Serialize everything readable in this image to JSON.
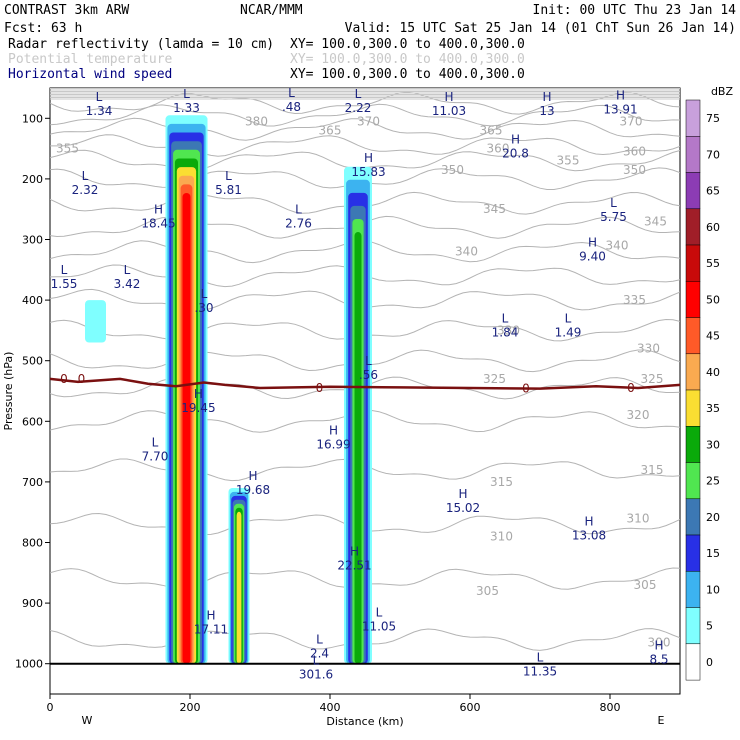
{
  "header": {
    "left_title": "CONTRAST  3km ARW",
    "center_title": "NCAR/MMM",
    "init": "Init: 00 UTC Thu 23 Jan 14",
    "fcst": "Fcst:   63 h",
    "valid": "Valid: 15 UTC Sat 25 Jan 14 (01 ChT Sun 26 Jan 14)",
    "fields": [
      {
        "name": "Radar reflectivity (lamda = 10 cm)",
        "xy": "XY= 100.0,300.0 to 400.0,300.0",
        "color": "#000000"
      },
      {
        "name": "Potential temperature",
        "xy": "XY= 100.0,300.0 to 400.0,300.0",
        "color": "#c8c8c8"
      },
      {
        "name": "Horizontal wind speed",
        "xy": "XY= 100.0,300.0 to 400.0,300.0",
        "color": "#000080"
      }
    ]
  },
  "chart_data": {
    "type": "heatmap",
    "xlabel": "Distance (km)",
    "ylabel": "Pressure (hPa)",
    "xlim": [
      0,
      900
    ],
    "ylim": [
      1050,
      50
    ],
    "x_ticks": [
      0,
      200,
      400,
      600,
      800
    ],
    "y_ticks": [
      100,
      200,
      300,
      400,
      500,
      600,
      700,
      800,
      900,
      1000
    ],
    "x_end_labels": {
      "left": "W",
      "right": "E"
    },
    "colorbar": {
      "unit": "dBZ",
      "levels": [
        0,
        5,
        10,
        15,
        20,
        25,
        30,
        35,
        40,
        45,
        50,
        55,
        60,
        65,
        70,
        75
      ],
      "colors": [
        "#ffffff",
        "#7fffff",
        "#3cb3f0",
        "#2830e6",
        "#3c78b4",
        "#50e650",
        "#0aaa0a",
        "#fade32",
        "#faaa50",
        "#ff5a28",
        "#ff0000",
        "#c80a0a",
        "#a01e28",
        "#8c3cb4",
        "#b478c8",
        "#c8a0dc"
      ]
    },
    "reflectivity_cells": [
      {
        "x0": 165,
        "x1": 225,
        "p_top": 95,
        "p_bottom": 1000,
        "max_dbz": 50
      },
      {
        "x0": 255,
        "x1": 285,
        "p_top": 710,
        "p_bottom": 1000,
        "max_dbz": 35
      },
      {
        "x0": 420,
        "x1": 460,
        "p_top": 180,
        "p_bottom": 1000,
        "max_dbz": 30
      },
      {
        "x0": 50,
        "x1": 80,
        "p_top": 400,
        "p_bottom": 470,
        "max_dbz": 5
      }
    ],
    "isentrope_labels": [
      {
        "x": 295,
        "p": 105,
        "text": "380"
      },
      {
        "x": 455,
        "p": 105,
        "text": "370"
      },
      {
        "x": 830,
        "p": 105,
        "text": "370"
      },
      {
        "x": 400,
        "p": 120,
        "text": "365"
      },
      {
        "x": 630,
        "p": 120,
        "text": "365"
      },
      {
        "x": 25,
        "p": 150,
        "text": "355"
      },
      {
        "x": 640,
        "p": 150,
        "text": "360"
      },
      {
        "x": 740,
        "p": 170,
        "text": "355"
      },
      {
        "x": 835,
        "p": 155,
        "text": "360"
      },
      {
        "x": 575,
        "p": 185,
        "text": "350"
      },
      {
        "x": 835,
        "p": 185,
        "text": "350"
      },
      {
        "x": 635,
        "p": 250,
        "text": "345"
      },
      {
        "x": 865,
        "p": 270,
        "text": "345"
      },
      {
        "x": 595,
        "p": 320,
        "text": "340"
      },
      {
        "x": 810,
        "p": 310,
        "text": "340"
      },
      {
        "x": 835,
        "p": 400,
        "text": "335"
      },
      {
        "x": 655,
        "p": 450,
        "text": "330"
      },
      {
        "x": 855,
        "p": 480,
        "text": "330"
      },
      {
        "x": 635,
        "p": 530,
        "text": "325"
      },
      {
        "x": 860,
        "p": 530,
        "text": "325"
      },
      {
        "x": 840,
        "p": 590,
        "text": "320"
      },
      {
        "x": 860,
        "p": 680,
        "text": "315"
      },
      {
        "x": 645,
        "p": 700,
        "text": "315"
      },
      {
        "x": 840,
        "p": 760,
        "text": "310"
      },
      {
        "x": 645,
        "p": 790,
        "text": "310"
      },
      {
        "x": 850,
        "p": 870,
        "text": "305"
      },
      {
        "x": 625,
        "p": 880,
        "text": "305"
      },
      {
        "x": 870,
        "p": 965,
        "text": "300"
      }
    ],
    "zero_wind_line": [
      [
        0,
        530
      ],
      [
        40,
        535
      ],
      [
        100,
        530
      ],
      [
        140,
        538
      ],
      [
        180,
        542
      ],
      [
        220,
        536
      ],
      [
        250,
        540
      ],
      [
        300,
        545
      ],
      [
        400,
        543
      ],
      [
        500,
        544
      ],
      [
        600,
        545
      ],
      [
        700,
        546
      ],
      [
        780,
        542
      ],
      [
        840,
        545
      ],
      [
        900,
        540
      ]
    ],
    "zero_labels": [
      {
        "x": 20,
        "p": 530,
        "text": "0"
      },
      {
        "x": 45,
        "p": 530,
        "text": "0"
      },
      {
        "x": 385,
        "p": 545,
        "text": "0"
      },
      {
        "x": 680,
        "p": 546,
        "text": "0"
      },
      {
        "x": 830,
        "p": 545,
        "text": "0"
      }
    ],
    "wind_extrema": [
      {
        "x": 70,
        "p": 75,
        "type": "L",
        "value": "1.34"
      },
      {
        "x": 195,
        "p": 70,
        "type": "L",
        "value": "1.33"
      },
      {
        "x": 345,
        "p": 68,
        "type": "L",
        "value": ".48"
      },
      {
        "x": 440,
        "p": 70,
        "type": "L",
        "value": "2.22"
      },
      {
        "x": 570,
        "p": 75,
        "type": "H",
        "value": "11.03"
      },
      {
        "x": 710,
        "p": 75,
        "type": "H",
        "value": "13"
      },
      {
        "x": 815,
        "p": 72,
        "type": "H",
        "value": "13.91"
      },
      {
        "x": 665,
        "p": 145,
        "type": "H",
        "value": "20.8"
      },
      {
        "x": 455,
        "p": 175,
        "type": "H",
        "value": "15.83"
      },
      {
        "x": 50,
        "p": 205,
        "type": "L",
        "value": "2.32"
      },
      {
        "x": 255,
        "p": 205,
        "type": "L",
        "value": "5.81"
      },
      {
        "x": 155,
        "p": 260,
        "type": "H",
        "value": "18.45"
      },
      {
        "x": 355,
        "p": 260,
        "type": "L",
        "value": "2.76"
      },
      {
        "x": 805,
        "p": 250,
        "type": "L",
        "value": "5.75"
      },
      {
        "x": 775,
        "p": 315,
        "type": "H",
        "value": "9.40"
      },
      {
        "x": 20,
        "p": 360,
        "type": "L",
        "value": "1.55"
      },
      {
        "x": 110,
        "p": 360,
        "type": "L",
        "value": "3.42"
      },
      {
        "x": 220,
        "p": 400,
        "type": "L",
        "value": ".30"
      },
      {
        "x": 650,
        "p": 440,
        "type": "L",
        "value": "1.84"
      },
      {
        "x": 740,
        "p": 440,
        "type": "L",
        "value": "1.49"
      },
      {
        "x": 455,
        "p": 510,
        "type": "L",
        "value": ".56"
      },
      {
        "x": 212,
        "p": 565,
        "type": "H",
        "value": "19.45"
      },
      {
        "x": 405,
        "p": 625,
        "type": "H",
        "value": "16.99"
      },
      {
        "x": 150,
        "p": 645,
        "type": "L",
        "value": "7.70"
      },
      {
        "x": 290,
        "p": 700,
        "type": "H",
        "value": "19.68"
      },
      {
        "x": 590,
        "p": 730,
        "type": "H",
        "value": "15.02"
      },
      {
        "x": 770,
        "p": 775,
        "type": "H",
        "value": "13.08"
      },
      {
        "x": 435,
        "p": 825,
        "type": "H",
        "value": "22.51"
      },
      {
        "x": 230,
        "p": 930,
        "type": "H",
        "value": "17.11"
      },
      {
        "x": 470,
        "p": 925,
        "type": "L",
        "value": "11.05"
      },
      {
        "x": 385,
        "p": 970,
        "type": "L",
        "value": "2.4"
      },
      {
        "x": 380,
        "p": 1005,
        "type": "L",
        "value": "301.6"
      },
      {
        "x": 700,
        "p": 1000,
        "type": "L",
        "value": "11.35"
      },
      {
        "x": 870,
        "p": 980,
        "type": "H",
        "value": "8.5"
      }
    ]
  }
}
